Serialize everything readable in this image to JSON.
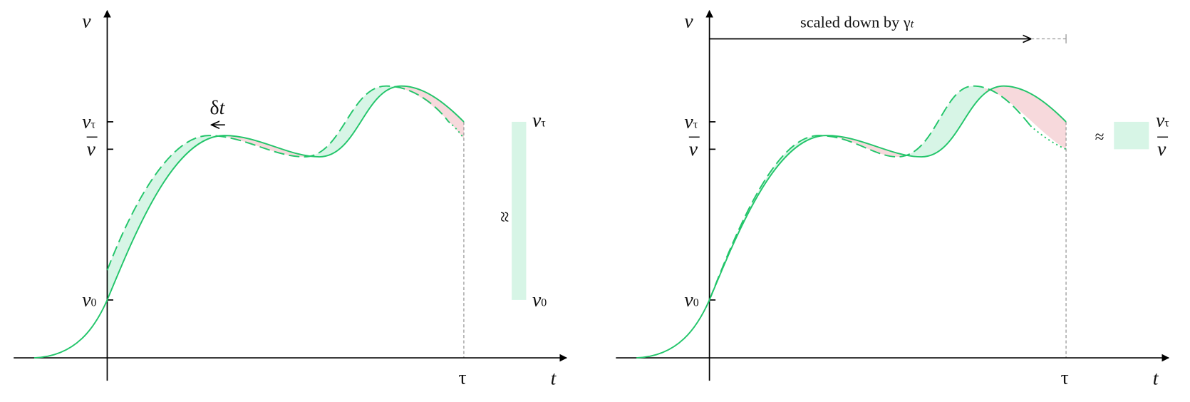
{
  "left": {
    "v_axis": "v",
    "t_axis": "t",
    "tick_vtau": {
      "main": "v",
      "sub": "τ"
    },
    "tick_vbar": "v",
    "tick_v0": {
      "main": "v",
      "sub": "0"
    },
    "tau": "τ",
    "shift": {
      "delta": "δ",
      "t": "t"
    },
    "approx": "≈",
    "bar_top": {
      "main": "v",
      "sub": "τ"
    },
    "bar_bottom": {
      "main": "v",
      "sub": "0"
    }
  },
  "right": {
    "v_axis": "v",
    "t_axis": "t",
    "tick_vtau": {
      "main": "v",
      "sub": "τ"
    },
    "tick_vbar": "v",
    "tick_v0": {
      "main": "v",
      "sub": "0"
    },
    "tau": "τ",
    "scale_note": {
      "text": "scaled down by γ",
      "sub": "t"
    },
    "approx": "≈",
    "bar_top": {
      "main": "v",
      "sub": "τ"
    },
    "bar_bottom": "v"
  }
}
